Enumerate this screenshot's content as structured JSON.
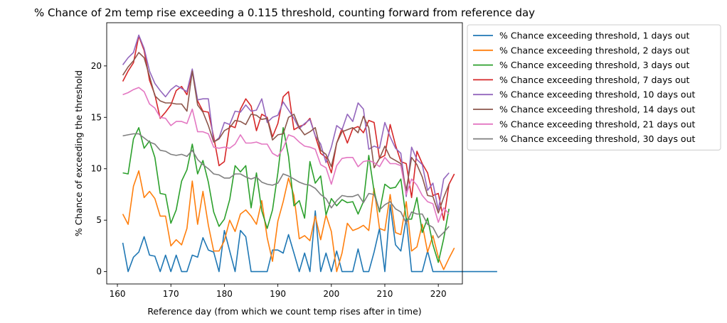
{
  "chart_data": {
    "type": "line",
    "title": "% Chance of 2m temp rise exceeding a 0.115 threshold, counting forward from reference day",
    "xlabel": "Reference day (from which we count temp rises after in time)",
    "ylabel": "% Chance of exceeding the threshold",
    "xlim": [
      158,
      224.5
    ],
    "ylim": [
      -1.2,
      24.2
    ],
    "xticks": [
      160,
      170,
      180,
      190,
      200,
      210,
      220
    ],
    "yticks": [
      0,
      5,
      10,
      15,
      20
    ],
    "grid": false,
    "legend": "outside-top-right",
    "x_start": 161,
    "series": [
      {
        "name": "% Chance exceeding threshold, 1 days out",
        "color": "#1f77b4",
        "values": [
          2.8,
          0,
          1.4,
          1.9,
          3.4,
          1.6,
          1.5,
          0,
          1.6,
          0,
          1.6,
          0,
          0,
          1.6,
          1.4,
          3.3,
          2.1,
          1.9,
          0,
          4.0,
          2.0,
          0,
          4.0,
          3.4,
          0,
          0,
          0,
          0,
          2.1,
          2.1,
          1.8,
          3.6,
          1.8,
          0,
          1.8,
          0,
          5.9,
          0,
          1.8,
          0,
          2.0,
          0,
          0,
          0,
          2.2,
          0,
          0,
          1.9,
          4.2,
          0,
          6.5,
          2.6,
          2.0,
          5.2,
          0,
          0,
          0,
          2.0,
          0,
          0,
          0,
          0,
          0,
          0,
          0,
          0,
          0,
          0,
          0,
          0,
          0
        ],
        "note_values_count_indexed_from_x_start": ""
      },
      {
        "name": "% Chance exceeding threshold, 2 days out",
        "color": "#ff7f0e",
        "values": [
          5.6,
          4.6,
          8.3,
          9.8,
          7.2,
          7.8,
          7.1,
          5.4,
          5.4,
          2.5,
          3.1,
          2.6,
          4.2,
          8.8,
          4.6,
          7.8,
          4.5,
          2.0,
          2.0,
          3.0,
          5.0,
          3.9,
          5.6,
          6.0,
          5.4,
          4.6,
          6.9,
          3.3,
          1.0,
          4.9,
          6.8,
          9.1,
          7.4,
          3.2,
          3.5,
          3.0,
          5.4,
          3.1,
          5.5,
          3.9,
          0,
          1.8,
          4.7,
          4.0,
          4.2,
          4.5,
          4.0,
          8.1,
          4.2,
          4.0,
          7.5,
          3.8,
          3.6,
          6.8,
          2.0,
          2.4,
          4.6,
          1.9,
          3.5,
          1.4,
          0.2,
          1.3,
          2.3
        ]
      },
      {
        "name": "% Chance exceeding threshold, 3 days out",
        "color": "#2ca02c",
        "values": [
          9.6,
          9.5,
          12.9,
          14.0,
          12.0,
          12.7,
          11.1,
          7.6,
          7.5,
          4.7,
          6.0,
          8.8,
          9.9,
          12.4,
          9.5,
          10.8,
          8.7,
          5.8,
          4.4,
          5.1,
          7.0,
          10.3,
          9.7,
          10.3,
          6.2,
          9.6,
          5.9,
          4.2,
          6.0,
          9.6,
          14.0,
          11.2,
          6.4,
          6.9,
          5.2,
          10.7,
          8.6,
          9.3,
          5.5,
          7.1,
          6.4,
          7.0,
          6.7,
          6.8,
          5.6,
          6.8,
          11.3,
          7.8,
          5.8,
          8.5,
          8.1,
          8.2,
          9.0,
          5.1,
          5.1,
          7.2,
          3.8,
          5.2,
          2.6,
          0.9,
          3.2,
          6.1
        ]
      },
      {
        "name": "% Chance exceeding threshold, 7 days out",
        "color": "#d62728",
        "values": [
          18.5,
          19.5,
          20.3,
          22.9,
          21.5,
          18.6,
          17.2,
          14.9,
          15.5,
          16.2,
          17.6,
          18.0,
          17.2,
          19.5,
          16.6,
          15.6,
          15.5,
          13.1,
          10.3,
          10.7,
          14.2,
          14.0,
          15.8,
          16.8,
          16.1,
          13.7,
          15.3,
          15.0,
          13.1,
          14.4,
          17.0,
          17.5,
          13.8,
          14.1,
          14.3,
          14.9,
          13.2,
          11.5,
          11.1,
          9.6,
          12.5,
          13.9,
          12.5,
          13.9,
          14.1,
          13.5,
          14.7,
          14.5,
          11.0,
          11.3,
          14.3,
          12.3,
          10.7,
          10.5,
          7.2,
          11.7,
          10.5,
          9.6,
          7.4,
          7.6,
          5.0,
          8.5,
          9.5
        ]
      },
      {
        "name": "% Chance exceeding threshold, 10 days out",
        "color": "#9467bd",
        "values": [
          20.1,
          20.8,
          21.3,
          23.0,
          21.7,
          19.5,
          18.3,
          17.6,
          17.0,
          17.7,
          18.1,
          17.8,
          17.5,
          19.7,
          16.7,
          16.8,
          16.8,
          12.6,
          13.0,
          14.5,
          14.3,
          15.6,
          15.5,
          16.2,
          15.6,
          15.7,
          16.8,
          14.5,
          15.0,
          15.2,
          16.5,
          15.7,
          14.9,
          13.9,
          14.4,
          14.8,
          13.2,
          12.4,
          10.6,
          12.1,
          14.2,
          13.8,
          15.3,
          14.6,
          16.4,
          15.8,
          11.9,
          12.2,
          12.0,
          14.5,
          13.1,
          12.0,
          11.5,
          7.3,
          12.1,
          10.9,
          10.4,
          7.9,
          8.6,
          6.0,
          9.0,
          9.6
        ]
      },
      {
        "name": "% Chance exceeding threshold, 14 days out",
        "color": "#8c564b",
        "values": [
          19.1,
          19.9,
          20.5,
          21.3,
          20.8,
          19.0,
          17.1,
          16.6,
          16.4,
          16.4,
          16.3,
          16.3,
          15.6,
          19.5,
          16.2,
          15.5,
          14.2,
          12.6,
          12.9,
          13.7,
          14.0,
          14.7,
          14.6,
          14.3,
          15.3,
          15.2,
          14.8,
          14.9,
          12.8,
          13.3,
          13.4,
          15.0,
          15.3,
          14.0,
          13.3,
          13.6,
          14.0,
          11.8,
          11.4,
          10.2,
          12.5,
          13.6,
          13.8,
          14.0,
          13.5,
          15.1,
          14.0,
          10.1,
          11.0,
          12.2,
          11.1,
          10.8,
          10.5,
          7.9,
          11.1,
          10.4,
          9.2,
          7.4,
          7.3,
          5.7,
          7.2,
          8.5
        ]
      },
      {
        "name": "% Chance exceeding threshold, 21 days out",
        "color": "#e377c2",
        "values": [
          17.2,
          17.4,
          17.7,
          17.9,
          17.5,
          16.3,
          15.9,
          15.0,
          14.9,
          14.2,
          14.6,
          14.6,
          14.4,
          15.8,
          13.6,
          13.6,
          13.4,
          12.1,
          12.0,
          12.1,
          12.0,
          12.4,
          13.3,
          12.5,
          12.5,
          12.6,
          12.4,
          12.4,
          11.5,
          11.2,
          12.0,
          13.3,
          13.1,
          12.6,
          12.2,
          12.1,
          11.9,
          10.4,
          10.1,
          8.5,
          10.3,
          11.0,
          11.1,
          11.1,
          10.2,
          10.7,
          10.8,
          10.6,
          10.2,
          11.1,
          10.5,
          10.5,
          10.3,
          7.5,
          9.0,
          8.4,
          7.4,
          6.8,
          6.6,
          4.8,
          6.2,
          5.6
        ]
      },
      {
        "name": "% Chance exceeding threshold, 30 days out",
        "color": "#7f7f7f",
        "values": [
          13.2,
          13.3,
          13.4,
          13.4,
          13.0,
          12.6,
          12.4,
          11.8,
          11.7,
          11.4,
          11.3,
          11.4,
          11.2,
          11.8,
          10.9,
          10.4,
          10.0,
          9.5,
          9.4,
          9.1,
          9.1,
          9.5,
          9.5,
          9.2,
          9.0,
          9.2,
          8.7,
          8.5,
          8.4,
          8.6,
          9.5,
          9.3,
          9.0,
          8.7,
          8.5,
          8.4,
          8.1,
          7.5,
          7.1,
          6.2,
          6.9,
          7.4,
          7.3,
          7.3,
          7.5,
          6.7,
          7.6,
          7.5,
          6.0,
          6.5,
          6.8,
          6.1,
          5.8,
          4.7,
          5.8,
          5.6,
          5.6,
          4.6,
          4.3,
          3.3,
          3.8,
          4.4
        ]
      }
    ]
  }
}
